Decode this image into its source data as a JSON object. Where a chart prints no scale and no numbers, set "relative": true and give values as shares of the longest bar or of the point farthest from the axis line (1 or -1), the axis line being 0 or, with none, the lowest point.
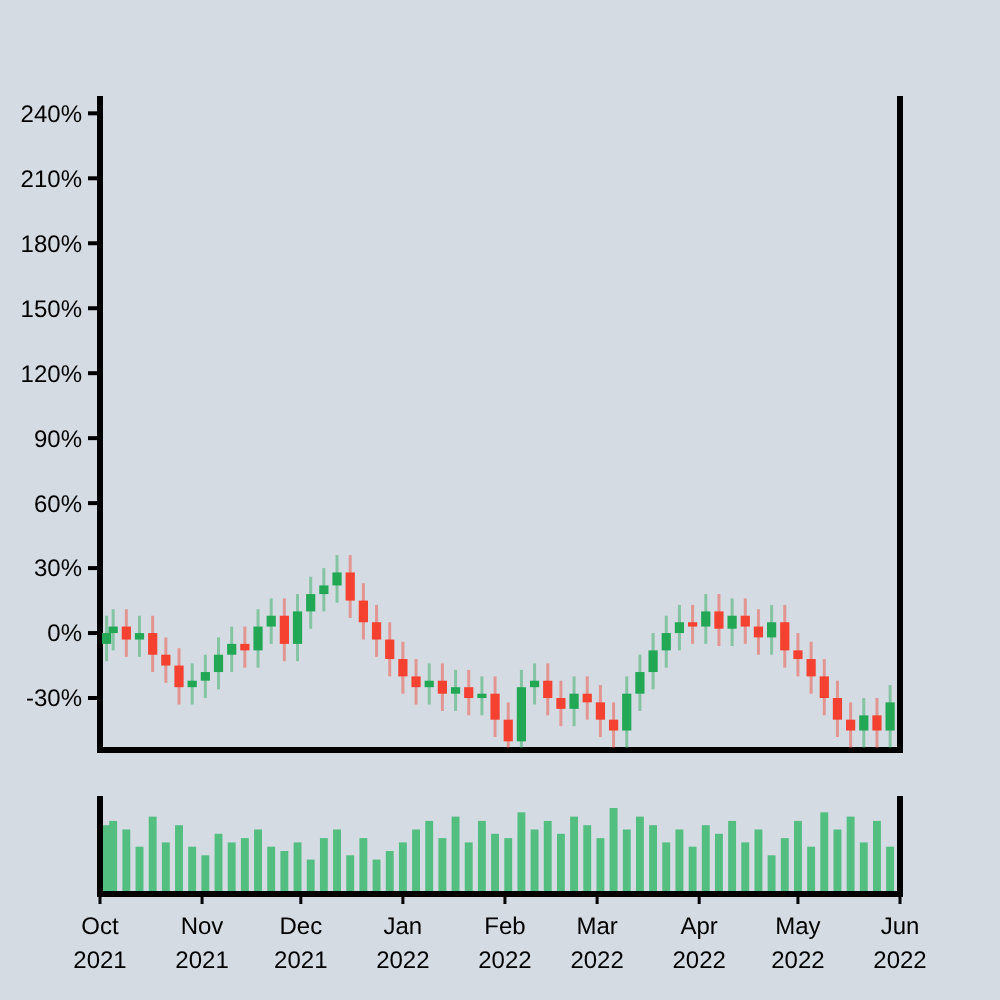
{
  "chart_data": [
    {
      "type": "candlestick",
      "tick_labels": "y",
      "xlim": [
        "2021-10-01",
        "2022-06-01"
      ],
      "ylim": [
        -54,
        248
      ],
      "yticks": [
        {
          "value": -30,
          "label": "-30%"
        },
        {
          "value": 0,
          "label": "0%"
        },
        {
          "value": 30,
          "label": "30%"
        },
        {
          "value": 60,
          "label": "60%"
        },
        {
          "value": 90,
          "label": "90%"
        },
        {
          "value": 120,
          "label": "120%"
        },
        {
          "value": 150,
          "label": "150%"
        },
        {
          "value": 180,
          "label": "180%"
        },
        {
          "value": 210,
          "label": "210%"
        },
        {
          "value": 240,
          "label": "240%"
        }
      ],
      "x": [
        "2021-10-03",
        "2021-10-05",
        "2021-10-09",
        "2021-10-13",
        "2021-10-17",
        "2021-10-21",
        "2021-10-25",
        "2021-10-29",
        "2021-11-02",
        "2021-11-06",
        "2021-11-10",
        "2021-11-14",
        "2021-11-18",
        "2021-11-22",
        "2021-11-26",
        "2021-11-30",
        "2021-12-04",
        "2021-12-08",
        "2021-12-12",
        "2021-12-16",
        "2021-12-20",
        "2021-12-24",
        "2021-12-28",
        "2022-01-01",
        "2022-01-05",
        "2022-01-09",
        "2022-01-13",
        "2022-01-17",
        "2022-01-21",
        "2022-01-25",
        "2022-01-29",
        "2022-02-02",
        "2022-02-06",
        "2022-02-10",
        "2022-02-14",
        "2022-02-18",
        "2022-02-22",
        "2022-02-26",
        "2022-03-02",
        "2022-03-06",
        "2022-03-10",
        "2022-03-14",
        "2022-03-18",
        "2022-03-22",
        "2022-03-26",
        "2022-03-30",
        "2022-04-03",
        "2022-04-07",
        "2022-04-11",
        "2022-04-15",
        "2022-04-19",
        "2022-04-23",
        "2022-04-27",
        "2022-05-01",
        "2022-05-05",
        "2022-05-09",
        "2022-05-13",
        "2022-05-17",
        "2022-05-21",
        "2022-05-25",
        "2022-05-29"
      ],
      "ohlc": [
        [
          -5,
          8,
          -13,
          0
        ],
        [
          0,
          11,
          -8,
          3
        ],
        [
          3,
          11,
          -11,
          -3
        ],
        [
          -3,
          8,
          -11,
          0
        ],
        [
          0,
          8,
          -18,
          -10
        ],
        [
          -10,
          -2,
          -23,
          -15
        ],
        [
          -15,
          -7,
          -33,
          -25
        ],
        [
          -25,
          -14,
          -33,
          -22
        ],
        [
          -22,
          -10,
          -30,
          -18
        ],
        [
          -18,
          -2,
          -26,
          -10
        ],
        [
          -10,
          3,
          -18,
          -5
        ],
        [
          -5,
          3,
          -16,
          -8
        ],
        [
          -8,
          11,
          -16,
          3
        ],
        [
          3,
          16,
          -5,
          8
        ],
        [
          8,
          16,
          -13,
          -5
        ],
        [
          -5,
          18,
          -13,
          10
        ],
        [
          10,
          26,
          2,
          18
        ],
        [
          18,
          30,
          10,
          22
        ],
        [
          22,
          36,
          14,
          28
        ],
        [
          28,
          36,
          7,
          15
        ],
        [
          15,
          23,
          -3,
          5
        ],
        [
          5,
          13,
          -11,
          -3
        ],
        [
          -3,
          5,
          -20,
          -12
        ],
        [
          -12,
          -4,
          -28,
          -20
        ],
        [
          -20,
          -12,
          -33,
          -25
        ],
        [
          -25,
          -14,
          -33,
          -22
        ],
        [
          -22,
          -14,
          -36,
          -28
        ],
        [
          -28,
          -17,
          -36,
          -25
        ],
        [
          -25,
          -17,
          -38,
          -30
        ],
        [
          -30,
          -20,
          -38,
          -28
        ],
        [
          -28,
          -20,
          -48,
          -40
        ],
        [
          -40,
          -32,
          -53,
          -50
        ],
        [
          -50,
          -17,
          -53,
          -25
        ],
        [
          -25,
          -14,
          -33,
          -22
        ],
        [
          -22,
          -14,
          -38,
          -30
        ],
        [
          -30,
          -22,
          -43,
          -35
        ],
        [
          -35,
          -20,
          -43,
          -28
        ],
        [
          -28,
          -20,
          -40,
          -32
        ],
        [
          -32,
          -24,
          -48,
          -40
        ],
        [
          -40,
          -32,
          -53,
          -45
        ],
        [
          -45,
          -20,
          -53,
          -28
        ],
        [
          -28,
          -10,
          -36,
          -18
        ],
        [
          -18,
          0,
          -26,
          -8
        ],
        [
          -8,
          8,
          -16,
          0
        ],
        [
          0,
          13,
          -8,
          5
        ],
        [
          5,
          13,
          -5,
          3
        ],
        [
          3,
          18,
          -5,
          10
        ],
        [
          10,
          18,
          -6,
          2
        ],
        [
          2,
          16,
          -6,
          8
        ],
        [
          8,
          16,
          -5,
          3
        ],
        [
          3,
          11,
          -10,
          -2
        ],
        [
          -2,
          13,
          -10,
          5
        ],
        [
          5,
          13,
          -16,
          -8
        ],
        [
          -8,
          0,
          -20,
          -12
        ],
        [
          -12,
          -4,
          -28,
          -20
        ],
        [
          -20,
          -12,
          -38,
          -30
        ],
        [
          -30,
          -22,
          -48,
          -40
        ],
        [
          -40,
          -32,
          -53,
          -45
        ],
        [
          -45,
          -30,
          -53,
          -38
        ],
        [
          -38,
          -30,
          -53,
          -45
        ],
        [
          -45,
          -24,
          -53,
          -32
        ]
      ],
      "colors": [
        "#22a855",
        "#22a855",
        "#f5412f",
        "#22a855",
        "#f5412f",
        "#f5412f",
        "#f5412f",
        "#22a855",
        "#22a855",
        "#22a855",
        "#22a855",
        "#f5412f",
        "#22a855",
        "#22a855",
        "#f5412f",
        "#22a855",
        "#22a855",
        "#22a855",
        "#22a855",
        "#f5412f",
        "#f5412f",
        "#f5412f",
        "#f5412f",
        "#f5412f",
        "#f5412f",
        "#22a855",
        "#f5412f",
        "#22a855",
        "#f5412f",
        "#22a855",
        "#f5412f",
        "#f5412f",
        "#22a855",
        "#22a855",
        "#f5412f",
        "#f5412f",
        "#22a855",
        "#f5412f",
        "#f5412f",
        "#f5412f",
        "#22a855",
        "#22a855",
        "#22a855",
        "#22a855",
        "#22a855",
        "#f5412f",
        "#22a855",
        "#f5412f",
        "#22a855",
        "#f5412f",
        "#f5412f",
        "#22a855",
        "#f5412f",
        "#f5412f",
        "#f5412f",
        "#f5412f",
        "#f5412f",
        "#f5412f",
        "#22a855",
        "#f5412f",
        "#22a855"
      ]
    },
    {
      "type": "bar",
      "relative": true,
      "tick_labels": "x",
      "xlim": [
        "2021-10-01",
        "2022-06-01"
      ],
      "color": "#52bf80",
      "xticks": [
        {
          "value": "2021-10-01",
          "label": "Oct 2021"
        },
        {
          "value": "2021-11-01",
          "label": "Nov 2021"
        },
        {
          "value": "2021-12-01",
          "label": "Dec 2021"
        },
        {
          "value": "2022-01-01",
          "label": "Jan 2022"
        },
        {
          "value": "2022-02-01",
          "label": "Feb 2022"
        },
        {
          "value": "2022-03-01",
          "label": "Mar 2022"
        },
        {
          "value": "2022-04-01",
          "label": "Apr 2022"
        },
        {
          "value": "2022-05-01",
          "label": "May 2022"
        },
        {
          "value": "2022-06-01",
          "label": "Jun 2022"
        }
      ],
      "x": [
        "2021-10-03",
        "2021-10-05",
        "2021-10-09",
        "2021-10-13",
        "2021-10-17",
        "2021-10-21",
        "2021-10-25",
        "2021-10-29",
        "2021-11-02",
        "2021-11-06",
        "2021-11-10",
        "2021-11-14",
        "2021-11-18",
        "2021-11-22",
        "2021-11-26",
        "2021-11-30",
        "2021-12-04",
        "2021-12-08",
        "2021-12-12",
        "2021-12-16",
        "2021-12-20",
        "2021-12-24",
        "2021-12-28",
        "2022-01-01",
        "2022-01-05",
        "2022-01-09",
        "2022-01-13",
        "2022-01-17",
        "2022-01-21",
        "2022-01-25",
        "2022-01-29",
        "2022-02-02",
        "2022-02-06",
        "2022-02-10",
        "2022-02-14",
        "2022-02-18",
        "2022-02-22",
        "2022-02-26",
        "2022-03-02",
        "2022-03-06",
        "2022-03-10",
        "2022-03-14",
        "2022-03-18",
        "2022-03-22",
        "2022-03-26",
        "2022-03-30",
        "2022-04-03",
        "2022-04-07",
        "2022-04-11",
        "2022-04-15",
        "2022-04-19",
        "2022-04-23",
        "2022-04-27",
        "2022-05-01",
        "2022-05-05",
        "2022-05-09",
        "2022-05-13",
        "2022-05-17",
        "2022-05-21",
        "2022-05-25",
        "2022-05-29"
      ],
      "values": [
        0.8,
        0.85,
        0.75,
        0.55,
        0.9,
        0.6,
        0.8,
        0.55,
        0.45,
        0.7,
        0.6,
        0.65,
        0.75,
        0.55,
        0.5,
        0.6,
        0.4,
        0.65,
        0.75,
        0.45,
        0.65,
        0.4,
        0.5,
        0.6,
        0.75,
        0.85,
        0.65,
        0.9,
        0.6,
        0.85,
        0.7,
        0.65,
        0.95,
        0.75,
        0.85,
        0.7,
        0.9,
        0.8,
        0.65,
        1,
        0.75,
        0.9,
        0.8,
        0.6,
        0.75,
        0.55,
        0.8,
        0.7,
        0.85,
        0.6,
        0.75,
        0.45,
        0.65,
        0.85,
        0.55,
        0.95,
        0.75,
        0.9,
        0.6,
        0.85,
        0.55
      ]
    }
  ]
}
